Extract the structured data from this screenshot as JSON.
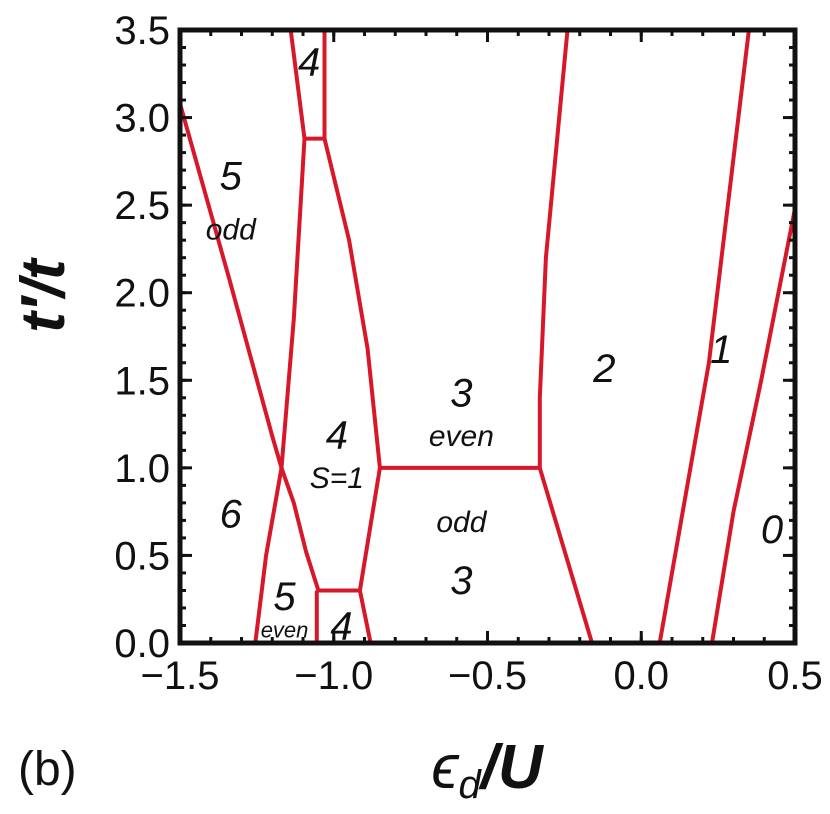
{
  "panel_label": "(b)",
  "chart_data": {
    "type": "line",
    "title": "",
    "xlabel": "ϵd/U",
    "xlabel_main": "ϵ",
    "xlabel_sub": "d",
    "xlabel_rest": "/U",
    "ylabel": "t′/t",
    "xlim": [
      -1.5,
      0.5
    ],
    "ylim": [
      0.0,
      3.5
    ],
    "xticks": [
      -1.5,
      -1.0,
      -0.5,
      0.0,
      0.5
    ],
    "yticks": [
      0.0,
      0.5,
      1.0,
      1.5,
      2.0,
      2.5,
      3.0,
      3.5
    ],
    "xtick_labels": [
      "−1.5",
      "−1.0",
      "−0.5",
      "0.0",
      "0.5"
    ],
    "ytick_labels": [
      "0.0",
      "0.5",
      "1.0",
      "1.5",
      "2.0",
      "2.5",
      "3.0",
      "3.5"
    ],
    "grid": false,
    "line_color": "#d7182a",
    "series": [
      {
        "points": [
          [
            -1.5,
            3.08
          ],
          [
            -1.34,
            2.08
          ],
          [
            -1.2,
            1.18
          ],
          [
            -1.17,
            1.0
          ],
          [
            -1.13,
            0.8
          ],
          [
            -1.09,
            0.52
          ],
          [
            -1.05,
            0.3
          ]
        ]
      },
      {
        "points": [
          [
            -1.255,
            0.0
          ],
          [
            -1.22,
            0.5
          ],
          [
            -1.17,
            1.0
          ],
          [
            -1.13,
            1.85
          ],
          [
            -1.095,
            2.88
          ]
        ]
      },
      {
        "points": [
          [
            -1.14,
            3.5
          ],
          [
            -1.095,
            2.88
          ]
        ]
      },
      {
        "points": [
          [
            -1.095,
            2.88
          ],
          [
            -1.03,
            2.88
          ]
        ]
      },
      {
        "points": [
          [
            -1.03,
            2.88
          ],
          [
            -1.03,
            3.5
          ]
        ]
      },
      {
        "points": [
          [
            -1.03,
            2.88
          ],
          [
            -0.95,
            2.3
          ],
          [
            -0.89,
            1.68
          ],
          [
            -0.85,
            1.0
          ]
        ]
      },
      {
        "points": [
          [
            -1.055,
            0.3
          ],
          [
            -0.915,
            0.3
          ]
        ]
      },
      {
        "points": [
          [
            -1.055,
            0.3
          ],
          [
            -1.055,
            0.0
          ]
        ]
      },
      {
        "points": [
          [
            -0.915,
            0.3
          ],
          [
            -0.88,
            0.0
          ]
        ]
      },
      {
        "points": [
          [
            -0.915,
            0.3
          ],
          [
            -0.85,
            1.0
          ]
        ]
      },
      {
        "points": [
          [
            -0.85,
            1.0
          ],
          [
            -0.33,
            1.0
          ]
        ]
      },
      {
        "points": [
          [
            -0.33,
            1.0
          ],
          [
            -0.33,
            1.4
          ],
          [
            -0.31,
            2.2
          ],
          [
            -0.24,
            3.5
          ]
        ]
      },
      {
        "points": [
          [
            -0.33,
            1.0
          ],
          [
            -0.16,
            0.0
          ]
        ]
      },
      {
        "points": [
          [
            0.06,
            0.0
          ],
          [
            0.13,
            0.7
          ],
          [
            0.22,
            1.6
          ],
          [
            0.35,
            3.5
          ]
        ]
      },
      {
        "points": [
          [
            0.23,
            0.0
          ],
          [
            0.3,
            0.75
          ],
          [
            0.39,
            1.5
          ],
          [
            0.5,
            2.48
          ]
        ]
      }
    ],
    "regions": [
      {
        "text": "4",
        "x": -1.08,
        "y": 3.3,
        "size": "large"
      },
      {
        "text": "5",
        "x": -1.335,
        "y": 2.65,
        "size": "large"
      },
      {
        "text": "odd",
        "x": -1.335,
        "y": 2.35,
        "size": "small"
      },
      {
        "text": "4",
        "x": -0.99,
        "y": 1.17,
        "size": "large"
      },
      {
        "text": "S=1",
        "x": -0.99,
        "y": 0.93,
        "size": "small"
      },
      {
        "text": "3",
        "x": -0.585,
        "y": 1.41,
        "size": "large"
      },
      {
        "text": "even",
        "x": -0.585,
        "y": 1.17,
        "size": "small"
      },
      {
        "text": "2",
        "x": -0.12,
        "y": 1.55,
        "size": "large"
      },
      {
        "text": "1",
        "x": 0.26,
        "y": 1.66,
        "size": "large"
      },
      {
        "text": "0",
        "x": 0.425,
        "y": 0.63,
        "size": "large"
      },
      {
        "text": "6",
        "x": -1.335,
        "y": 0.72,
        "size": "large"
      },
      {
        "text": "odd",
        "x": -0.585,
        "y": 0.68,
        "size": "small"
      },
      {
        "text": "3",
        "x": -0.585,
        "y": 0.34,
        "size": "large"
      },
      {
        "text": "5",
        "x": -1.16,
        "y": 0.25,
        "size": "large"
      },
      {
        "text": "even",
        "x": -1.16,
        "y": 0.065,
        "size": "xsmall"
      },
      {
        "text": "4",
        "x": -0.975,
        "y": 0.08,
        "size": "large"
      }
    ]
  }
}
